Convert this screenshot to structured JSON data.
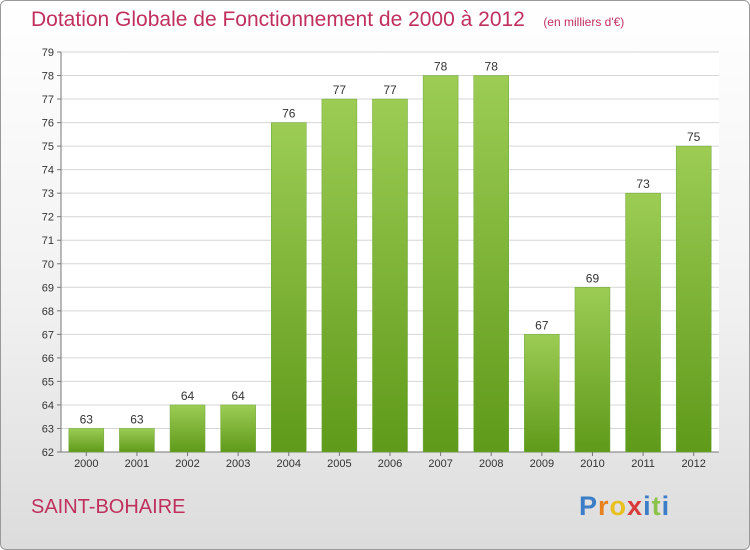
{
  "header": {
    "title": "Dotation Globale de Fonctionnement de 2000 à 2012",
    "subtitle": "(en milliers d'€)"
  },
  "commune": "SAINT-BOHAIRE",
  "logo": {
    "letters": [
      "P",
      "r",
      "o",
      "x",
      "i",
      "t",
      "i"
    ],
    "colors": [
      "#3b7ec7",
      "#e8801e",
      "#e8c020",
      "#d93a3a",
      "#3b7ec7",
      "#8bc34a",
      "#3b7ec7"
    ]
  },
  "chart_data": {
    "type": "bar",
    "title": "Dotation Globale de Fonctionnement de 2000 à 2012",
    "subtitle": "(en milliers d'€)",
    "categories": [
      "2000",
      "2001",
      "2002",
      "2003",
      "2004",
      "2005",
      "2006",
      "2007",
      "2008",
      "2009",
      "2010",
      "2011",
      "2012"
    ],
    "values": [
      63,
      63,
      64,
      64,
      76,
      77,
      77,
      78,
      78,
      67,
      69,
      73,
      75
    ],
    "ylim": [
      62,
      79
    ],
    "yticks": [
      62,
      63,
      64,
      65,
      66,
      67,
      68,
      69,
      70,
      71,
      72,
      73,
      74,
      75,
      76,
      77,
      78,
      79
    ],
    "grid": true,
    "colors": {
      "bar_light": "#9ccc54",
      "bar_dark": "#5f9a1a"
    }
  }
}
